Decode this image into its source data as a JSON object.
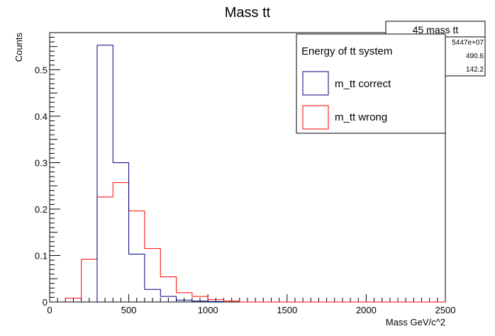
{
  "chart_data": {
    "type": "histogram",
    "title": "Mass tt",
    "xlabel": "Mass GeV/c^2",
    "ylabel": "Counts",
    "xlim": [
      0,
      2500
    ],
    "ylim": [
      0,
      0.58
    ],
    "x_ticks": [
      0,
      500,
      1000,
      1500,
      2000,
      2500
    ],
    "x_tick_labels": [
      "0",
      "500",
      "1000",
      "1500",
      "2000",
      "2500"
    ],
    "y_ticks": [
      0,
      0.1,
      0.2,
      0.3,
      0.4,
      0.5
    ],
    "y_tick_labels": [
      "0",
      "0.1",
      "0.2",
      "0.3",
      "0.4",
      "0.5"
    ],
    "bin_width": 100,
    "bin_start": 0,
    "bins": 25,
    "grid": false,
    "legend": {
      "title": "Energy of tt system",
      "placement": "top-right",
      "entries": [
        "m_tt correct",
        "m_tt wrong"
      ]
    },
    "stats_box": {
      "title": "45 mass tt",
      "rows": [
        "5447e+07",
        "490.6",
        "142.2"
      ]
    },
    "series": [
      {
        "name": "m_tt correct",
        "color": "#000080",
        "values": [
          0,
          0,
          0,
          0.553,
          0.3,
          0.103,
          0.027,
          0.012,
          0.004,
          0.002,
          0.001,
          0,
          0,
          0,
          0,
          0,
          0,
          0,
          0,
          0,
          0,
          0,
          0,
          0,
          0
        ]
      },
      {
        "name": "m_tt wrong",
        "color": "#ff0000",
        "values": [
          0,
          0.008,
          0.092,
          0.226,
          0.257,
          0.196,
          0.115,
          0.054,
          0.02,
          0.012,
          0.005,
          0.002,
          0,
          0,
          0,
          0,
          0,
          0,
          0,
          0,
          0,
          0,
          0,
          0,
          0
        ]
      }
    ]
  }
}
